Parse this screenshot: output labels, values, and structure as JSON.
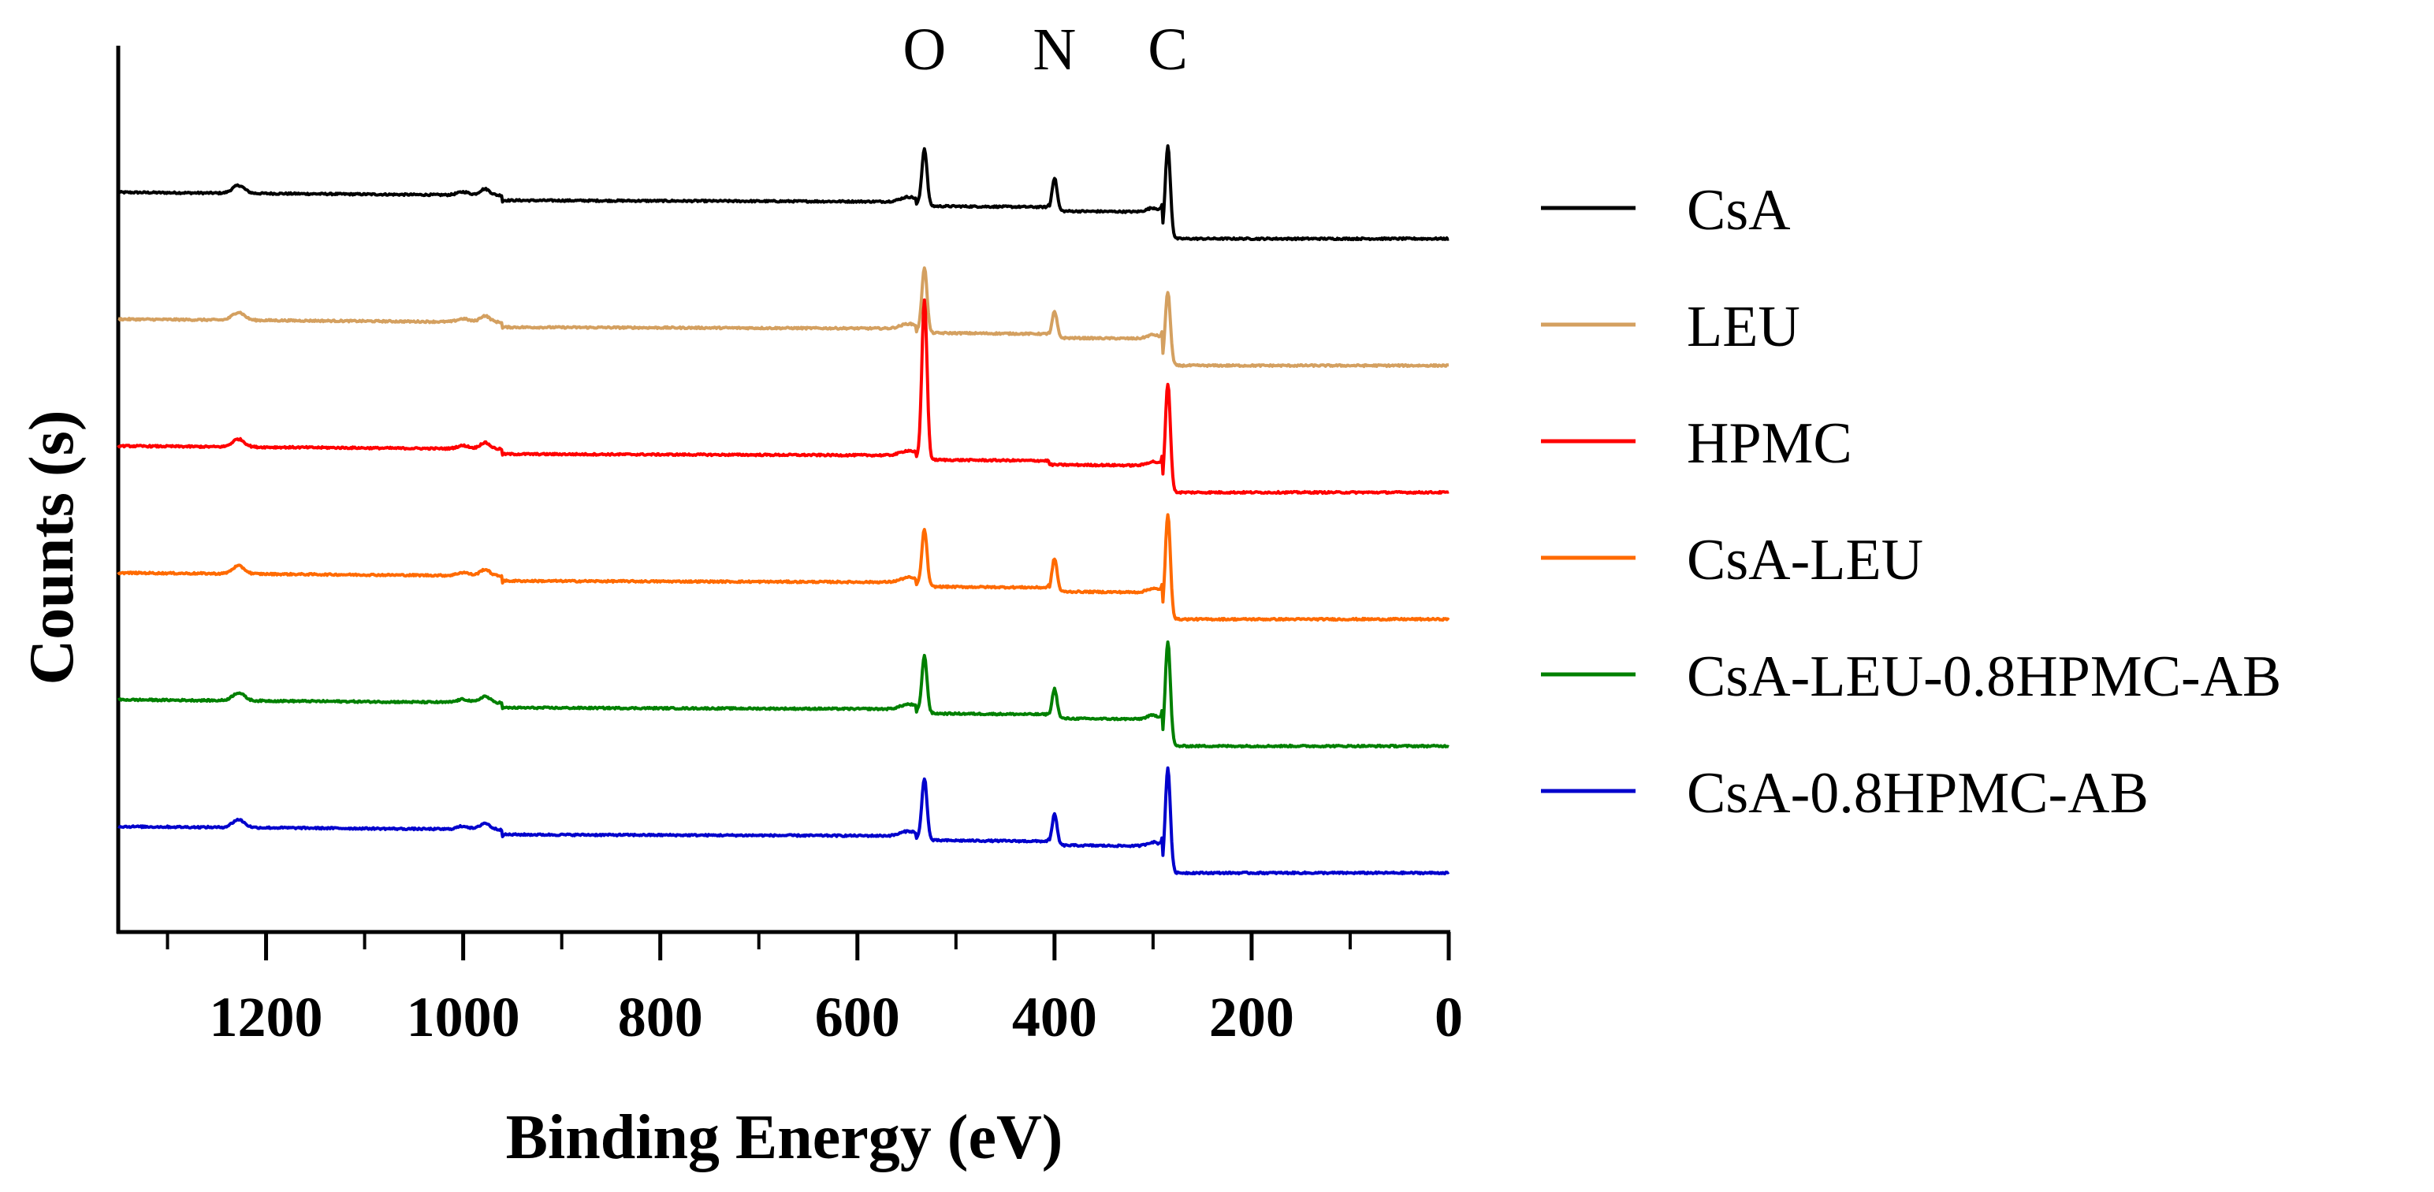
{
  "chart_data": {
    "type": "line",
    "title": "",
    "xlabel": "Binding Energy (eV)",
    "ylabel": "Counts (s)",
    "xlim": [
      1350,
      0
    ],
    "x_reversed": true,
    "x_ticks": [
      1200,
      1000,
      800,
      600,
      400,
      200,
      0
    ],
    "x_tick_labels": [
      "1200",
      "1000",
      "800",
      "600",
      "400",
      "200",
      "0"
    ],
    "x_minor_ticks": [
      1300,
      1100,
      900,
      700,
      500,
      300,
      100
    ],
    "y_ticks_shown": false,
    "grid": false,
    "legend_position": "right",
    "peak_annotations": [
      {
        "label": "O",
        "x": 532
      },
      {
        "label": "N",
        "x": 400
      },
      {
        "label": "C",
        "x": 285
      }
    ],
    "series": [
      {
        "name": "CsA",
        "color": "#000000",
        "offset": 5,
        "peak_heights": {
          "O": 0.48,
          "N": 0.28,
          "C": 0.78
        }
      },
      {
        "name": "LEU",
        "color": "#d4a060",
        "offset": 4,
        "peak_heights": {
          "O": 0.55,
          "N": 0.22,
          "C": 0.62
        }
      },
      {
        "name": "HPMC",
        "color": "#ff0000",
        "offset": 3,
        "peak_heights": {
          "O": 1.35,
          "N": 0.0,
          "C": 0.92
        }
      },
      {
        "name": "CsA-LEU",
        "color": "#ff6a00",
        "offset": 2,
        "peak_heights": {
          "O": 0.48,
          "N": 0.28,
          "C": 0.88
        }
      },
      {
        "name": "CsA-LEU-0.8HPMC-AB",
        "color": "#008000",
        "offset": 1,
        "peak_heights": {
          "O": 0.48,
          "N": 0.25,
          "C": 0.88
        }
      },
      {
        "name": "CsA-0.8HPMC-AB",
        "color": "#0000cc",
        "offset": 0,
        "peak_heights": {
          "O": 0.52,
          "N": 0.26,
          "C": 0.88
        }
      }
    ]
  }
}
